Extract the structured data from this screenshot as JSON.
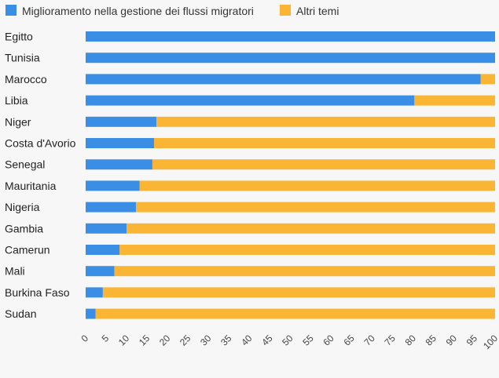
{
  "chart_data": {
    "type": "bar",
    "orientation": "horizontal",
    "stacked": true,
    "categories": [
      "Egitto",
      "Tunisia",
      "Marocco",
      "Libia",
      "Niger",
      "Costa d'Avorio",
      "Senegal",
      "Mauritania",
      "Nigeria",
      "Gambia",
      "Camerun",
      "Mali",
      "Burkina Faso",
      "Sudan"
    ],
    "series": [
      {
        "name": "Miglioramento nella gestione dei flussi migratori",
        "color": "#3a8ee6",
        "values": [
          100,
          100,
          96.5,
          80.3,
          17.3,
          16.7,
          16.3,
          13.2,
          12.3,
          10.0,
          8.3,
          7.0,
          4.2,
          2.4
        ]
      },
      {
        "name": "Altri temi",
        "color": "#fbb534",
        "values": [
          0,
          0,
          3.5,
          19.7,
          82.7,
          83.3,
          83.7,
          86.8,
          87.7,
          90.0,
          91.7,
          93.0,
          95.8,
          97.6
        ]
      }
    ],
    "xlim": [
      0,
      100
    ],
    "xticks": [
      0,
      5,
      10,
      15,
      20,
      25,
      30,
      35,
      40,
      45,
      50,
      55,
      60,
      65,
      70,
      75,
      80,
      85,
      90,
      95,
      100
    ],
    "grid": false,
    "legend_position": "top-left"
  }
}
